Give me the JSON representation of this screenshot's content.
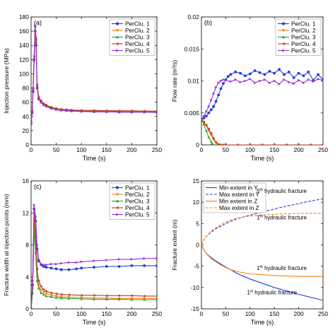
{
  "chart_data": [
    {
      "type": "line",
      "panel_label": "(a)",
      "xlabel": "Time (s)",
      "ylabel": "Injection pressure (MPa)",
      "xlim": [
        0,
        250
      ],
      "ylim": [
        0,
        180
      ],
      "xticks": [
        0,
        50,
        100,
        150,
        200,
        250
      ],
      "yticks": [
        0,
        20,
        40,
        60,
        80,
        100,
        120,
        140,
        160,
        180
      ],
      "legend_position": "top-right",
      "series": [
        {
          "name": "PerClu. 1",
          "color": "#1f3fd8",
          "marker": "circle",
          "x": [
            0,
            2,
            4,
            6,
            8,
            10,
            12,
            15,
            20,
            25,
            30,
            40,
            50,
            60,
            70,
            80,
            100,
            125,
            150,
            175,
            200,
            225,
            250
          ],
          "y": [
            30,
            45,
            75,
            120,
            160,
            140,
            80,
            65,
            60,
            57,
            55,
            52,
            50,
            49,
            48.5,
            48,
            47.5,
            47,
            47,
            46.5,
            46.5,
            46.5,
            46
          ]
        },
        {
          "name": "PerClu. 2",
          "color": "#ff7f0e",
          "marker": "triangle-down",
          "x": [
            0,
            2,
            4,
            6,
            8,
            10,
            12,
            15,
            20,
            25,
            30,
            40,
            50,
            60,
            70,
            80,
            100,
            125,
            150,
            175,
            200,
            225,
            250
          ],
          "y": [
            32,
            48,
            80,
            125,
            165,
            150,
            85,
            68,
            62,
            58,
            56,
            53,
            51,
            50,
            49.5,
            49,
            48.5,
            48,
            48,
            47.5,
            47.5,
            47.5,
            47
          ]
        },
        {
          "name": "PerClu. 3",
          "color": "#2ca02c",
          "marker": "triangle-up",
          "x": [
            0,
            2,
            4,
            6,
            8,
            10,
            12,
            15,
            20,
            25,
            30,
            40,
            50,
            60,
            70,
            80,
            100,
            125,
            150,
            175,
            200,
            225,
            250
          ],
          "y": [
            31,
            46,
            78,
            122,
            162,
            145,
            82,
            66,
            61,
            57,
            55,
            52,
            50,
            49,
            48,
            47.5,
            47,
            46.5,
            46.5,
            46,
            46,
            46,
            45.5
          ]
        },
        {
          "name": "PerClu. 4",
          "color": "#c0392b",
          "marker": "triangle-left",
          "x": [
            0,
            2,
            4,
            6,
            8,
            10,
            12,
            15,
            20,
            25,
            30,
            40,
            50,
            60,
            70,
            80,
            100,
            125,
            150,
            175,
            200,
            225,
            250
          ],
          "y": [
            33,
            47,
            79,
            124,
            166,
            148,
            84,
            67,
            62,
            58,
            56,
            53,
            51,
            50,
            49.5,
            49,
            48.5,
            48.5,
            48,
            48,
            48,
            47.5,
            47.5
          ]
        },
        {
          "name": "PerClu. 5",
          "color": "#9b30d9",
          "marker": "triangle-right",
          "x": [
            0,
            2,
            4,
            6,
            8,
            10,
            12,
            15,
            20,
            25,
            30,
            40,
            50,
            60,
            70,
            80,
            100,
            125,
            150,
            175,
            200,
            225,
            250
          ],
          "y": [
            30,
            44,
            76,
            118,
            168,
            142,
            81,
            64,
            60,
            56,
            54,
            51,
            49.5,
            48.5,
            48,
            47.5,
            47,
            46.5,
            46.5,
            46,
            46,
            46,
            46
          ]
        }
      ]
    },
    {
      "type": "line",
      "panel_label": "(b)",
      "xlabel": "Time (s)",
      "ylabel": "Flow rate (m³/s)",
      "xlim": [
        0,
        250
      ],
      "ylim": [
        0,
        0.02
      ],
      "xticks": [
        0,
        50,
        100,
        150,
        200,
        250
      ],
      "yticks": [
        0,
        0.005,
        0.01,
        0.015,
        0.02
      ],
      "yticklabels": [
        "0",
        "0.005",
        "0.01",
        "0.015",
        "0.02"
      ],
      "legend_position": "top-right",
      "series": [
        {
          "name": "PerClu. 1",
          "color": "#1f3fd8",
          "marker": "circle",
          "x": [
            0,
            5,
            10,
            15,
            20,
            25,
            30,
            35,
            40,
            45,
            50,
            55,
            60,
            70,
            80,
            90,
            100,
            110,
            120,
            130,
            140,
            150,
            160,
            170,
            180,
            190,
            200,
            210,
            220,
            230,
            240,
            250
          ],
          "y": [
            0.004,
            0.0042,
            0.0045,
            0.005,
            0.0055,
            0.006,
            0.0068,
            0.0078,
            0.0088,
            0.0096,
            0.0102,
            0.0107,
            0.011,
            0.0114,
            0.0112,
            0.0108,
            0.0111,
            0.0116,
            0.0113,
            0.011,
            0.0115,
            0.0112,
            0.0118,
            0.011,
            0.0114,
            0.0105,
            0.0112,
            0.0108,
            0.0114,
            0.0101,
            0.011,
            0.0102
          ]
        },
        {
          "name": "PerClu. 2",
          "color": "#ff7f0e",
          "marker": "triangle-down",
          "x": [
            0,
            5,
            10,
            15,
            20,
            25,
            30,
            35,
            40,
            45,
            50,
            75,
            100,
            125,
            150,
            175,
            200,
            225,
            250
          ],
          "y": [
            0.004,
            0.0035,
            0.003,
            0.0022,
            0.0015,
            0.0008,
            0.0003,
            0.0001,
            0,
            0,
            0,
            0,
            0,
            0,
            0,
            0,
            0,
            0,
            0
          ]
        },
        {
          "name": "PerClu. 3",
          "color": "#2ca02c",
          "marker": "triangle-up",
          "x": [
            0,
            5,
            10,
            15,
            20,
            22,
            25,
            30,
            50,
            75,
            100,
            125,
            150,
            175,
            200,
            225,
            250
          ],
          "y": [
            0.004,
            0.0032,
            0.0022,
            0.0012,
            0.0005,
            0.0002,
            0,
            0,
            0,
            0,
            0,
            0,
            0,
            0,
            0,
            0,
            0
          ]
        },
        {
          "name": "PerClu. 4",
          "color": "#c0392b",
          "marker": "triangle-left",
          "x": [
            0,
            5,
            10,
            15,
            20,
            25,
            30,
            35,
            40,
            45,
            50,
            75,
            100,
            125,
            150,
            175,
            200,
            225,
            250
          ],
          "y": [
            0.004,
            0.0036,
            0.0031,
            0.0025,
            0.0018,
            0.001,
            0.0004,
            0.0001,
            0,
            0,
            0,
            0,
            0,
            0,
            0,
            0,
            0,
            0,
            0
          ]
        },
        {
          "name": "PerClu. 5",
          "color": "#9b30d9",
          "marker": "triangle-right",
          "x": [
            0,
            5,
            10,
            15,
            20,
            25,
            30,
            35,
            40,
            45,
            50,
            60,
            70,
            80,
            90,
            100,
            110,
            120,
            130,
            140,
            150,
            160,
            170,
            180,
            190,
            200,
            210,
            220,
            230,
            240,
            250
          ],
          "y": [
            0.004,
            0.0045,
            0.0052,
            0.006,
            0.007,
            0.008,
            0.009,
            0.0097,
            0.01,
            0.0102,
            0.0101,
            0.0099,
            0.0102,
            0.0098,
            0.01,
            0.0103,
            0.0097,
            0.01,
            0.0102,
            0.0097,
            0.01,
            0.0095,
            0.0102,
            0.0098,
            0.0096,
            0.0101,
            0.0097,
            0.0102,
            0.0099,
            0.0103,
            0.0101
          ]
        }
      ]
    },
    {
      "type": "line",
      "panel_label": "(c)",
      "xlabel": "Time (s)",
      "ylabel": "Fracture width at injection points (mm)",
      "xlim": [
        0,
        250
      ],
      "ylim": [
        0,
        16
      ],
      "xticks": [
        0,
        50,
        100,
        150,
        200,
        250
      ],
      "yticks": [
        0,
        4,
        8,
        12,
        16
      ],
      "legend_position": "top-right",
      "series": [
        {
          "name": "PerClu. 1",
          "color": "#1f3fd8",
          "marker": "circle",
          "x": [
            0,
            3,
            6,
            9,
            12,
            15,
            20,
            25,
            30,
            40,
            50,
            60,
            75,
            90,
            100,
            125,
            150,
            175,
            200,
            225,
            250
          ],
          "y": [
            0,
            3,
            12.5,
            11,
            7.5,
            6,
            5.5,
            5.3,
            5.2,
            5.1,
            5.0,
            4.9,
            4.9,
            5.0,
            5.1,
            5.2,
            5.3,
            5.3,
            5.4,
            5.4,
            5.4
          ]
        },
        {
          "name": "PerClu. 2",
          "color": "#ff7f0e",
          "marker": "triangle-down",
          "x": [
            0,
            3,
            6,
            9,
            12,
            15,
            20,
            25,
            30,
            40,
            50,
            60,
            75,
            100,
            125,
            150,
            175,
            200,
            225,
            250
          ],
          "y": [
            0,
            2.5,
            11,
            8,
            4,
            3,
            2.4,
            2.1,
            1.9,
            1.7,
            1.6,
            1.5,
            1.45,
            1.4,
            1.35,
            1.35,
            1.3,
            1.3,
            1.3,
            1.3
          ]
        },
        {
          "name": "PerClu. 3",
          "color": "#2ca02c",
          "marker": "triangle-up",
          "x": [
            0,
            3,
            6,
            9,
            12,
            15,
            20,
            25,
            30,
            40,
            50,
            60,
            75,
            100,
            125,
            150,
            175,
            200,
            225,
            250
          ],
          "y": [
            0,
            2,
            10,
            7,
            3.5,
            2.6,
            2.0,
            1.8,
            1.6,
            1.5,
            1.4,
            1.35,
            1.3,
            1.25,
            1.2,
            1.2,
            1.2,
            1.15,
            1.15,
            1.15
          ]
        },
        {
          "name": "PerClu. 4",
          "color": "#c0392b",
          "marker": "triangle-left",
          "x": [
            0,
            3,
            6,
            9,
            12,
            15,
            20,
            25,
            30,
            40,
            50,
            60,
            75,
            100,
            125,
            150,
            175,
            200,
            225,
            250
          ],
          "y": [
            0,
            3,
            12,
            9,
            5,
            3.5,
            2.8,
            2.4,
            2.2,
            2.0,
            1.9,
            1.8,
            1.75,
            1.7,
            1.7,
            1.65,
            1.65,
            1.65,
            1.6,
            1.6
          ]
        },
        {
          "name": "PerClu. 5",
          "color": "#9b30d9",
          "marker": "triangle-right",
          "x": [
            0,
            3,
            6,
            9,
            12,
            15,
            20,
            25,
            30,
            40,
            50,
            60,
            75,
            90,
            100,
            125,
            150,
            175,
            200,
            225,
            250
          ],
          "y": [
            0,
            3.5,
            13,
            11.5,
            8,
            6.2,
            5.6,
            5.5,
            5.5,
            5.6,
            5.6,
            5.7,
            5.8,
            5.8,
            5.9,
            6.0,
            6.1,
            6.2,
            6.2,
            6.3,
            6.3
          ]
        }
      ]
    },
    {
      "type": "line",
      "panel_label": "(d)",
      "xlabel": "Time (s)",
      "ylabel": "Fracture extent (m)",
      "xlim": [
        0,
        250
      ],
      "ylim": [
        -15,
        15
      ],
      "xticks": [
        0,
        50,
        100,
        150,
        200,
        250
      ],
      "yticks": [
        -15,
        -10,
        -5,
        0,
        5,
        10,
        15
      ],
      "legend_position": "top-left",
      "series": [
        {
          "name": "Min extent in Y",
          "color": "#1f3fd8",
          "dash": "solid",
          "x": [
            0,
            5,
            10,
            20,
            30,
            40,
            50,
            60,
            75,
            100,
            125,
            150,
            175,
            200,
            225,
            250
          ],
          "y": [
            0,
            -1.2,
            -2.0,
            -3.0,
            -3.8,
            -4.5,
            -5.2,
            -5.8,
            -6.8,
            -8.0,
            -9.0,
            -10.0,
            -10.8,
            -11.6,
            -12.3,
            -13.0
          ]
        },
        {
          "name": "Max extent in Y",
          "color": "#1f3fd8",
          "dash": "dashed",
          "x": [
            0,
            5,
            10,
            20,
            30,
            40,
            50,
            60,
            75,
            100,
            125,
            150,
            175,
            200,
            225,
            250
          ],
          "y": [
            0,
            1.2,
            2.0,
            3.0,
            3.8,
            4.4,
            5.0,
            5.5,
            6.2,
            7.0,
            7.7,
            8.4,
            9.1,
            9.7,
            10.3,
            10.8
          ]
        },
        {
          "name": "Min extent in Z",
          "color": "#ff7f0e",
          "dash": "solid",
          "x": [
            0,
            5,
            10,
            20,
            30,
            40,
            50,
            60,
            75,
            100,
            125,
            150,
            175,
            200,
            225,
            250
          ],
          "y": [
            0,
            -1.2,
            -2.0,
            -3.2,
            -4.0,
            -4.7,
            -5.3,
            -5.8,
            -6.3,
            -6.8,
            -7.0,
            -7.2,
            -7.3,
            -7.4,
            -7.4,
            -7.4
          ]
        },
        {
          "name": "Max extent in Z",
          "color": "#ff7f0e",
          "dash": "dashed",
          "x": [
            0,
            5,
            10,
            20,
            30,
            40,
            50,
            60,
            75,
            100,
            125,
            150,
            175,
            200,
            225,
            250
          ],
          "y": [
            0,
            1.2,
            2.0,
            3.2,
            4.0,
            4.7,
            5.3,
            5.8,
            6.3,
            6.8,
            7.0,
            7.2,
            7.3,
            7.4,
            7.4,
            7.4
          ]
        }
      ],
      "annotations": [
        {
          "text": "5th hydraulic fracture",
          "ordinal": "5",
          "sup": "th",
          "rest": " hydraulic fracture",
          "x": 165,
          "y": 12.2
        },
        {
          "text": "1th hydraulic fracture",
          "ordinal": "1",
          "sup": "th",
          "rest": " hydraulic fracture",
          "x": 165,
          "y": 6.0
        },
        {
          "text": "1th hydraulic fracture",
          "ordinal": "1",
          "sup": "th",
          "rest": " hydraulic fracture",
          "x": 165,
          "y": -5.9
        },
        {
          "text": "1st hydraulic fracture",
          "ordinal": "1",
          "sup": "st",
          "rest": " hydraulic fracture",
          "x": 145,
          "y": -11.6
        }
      ]
    }
  ]
}
